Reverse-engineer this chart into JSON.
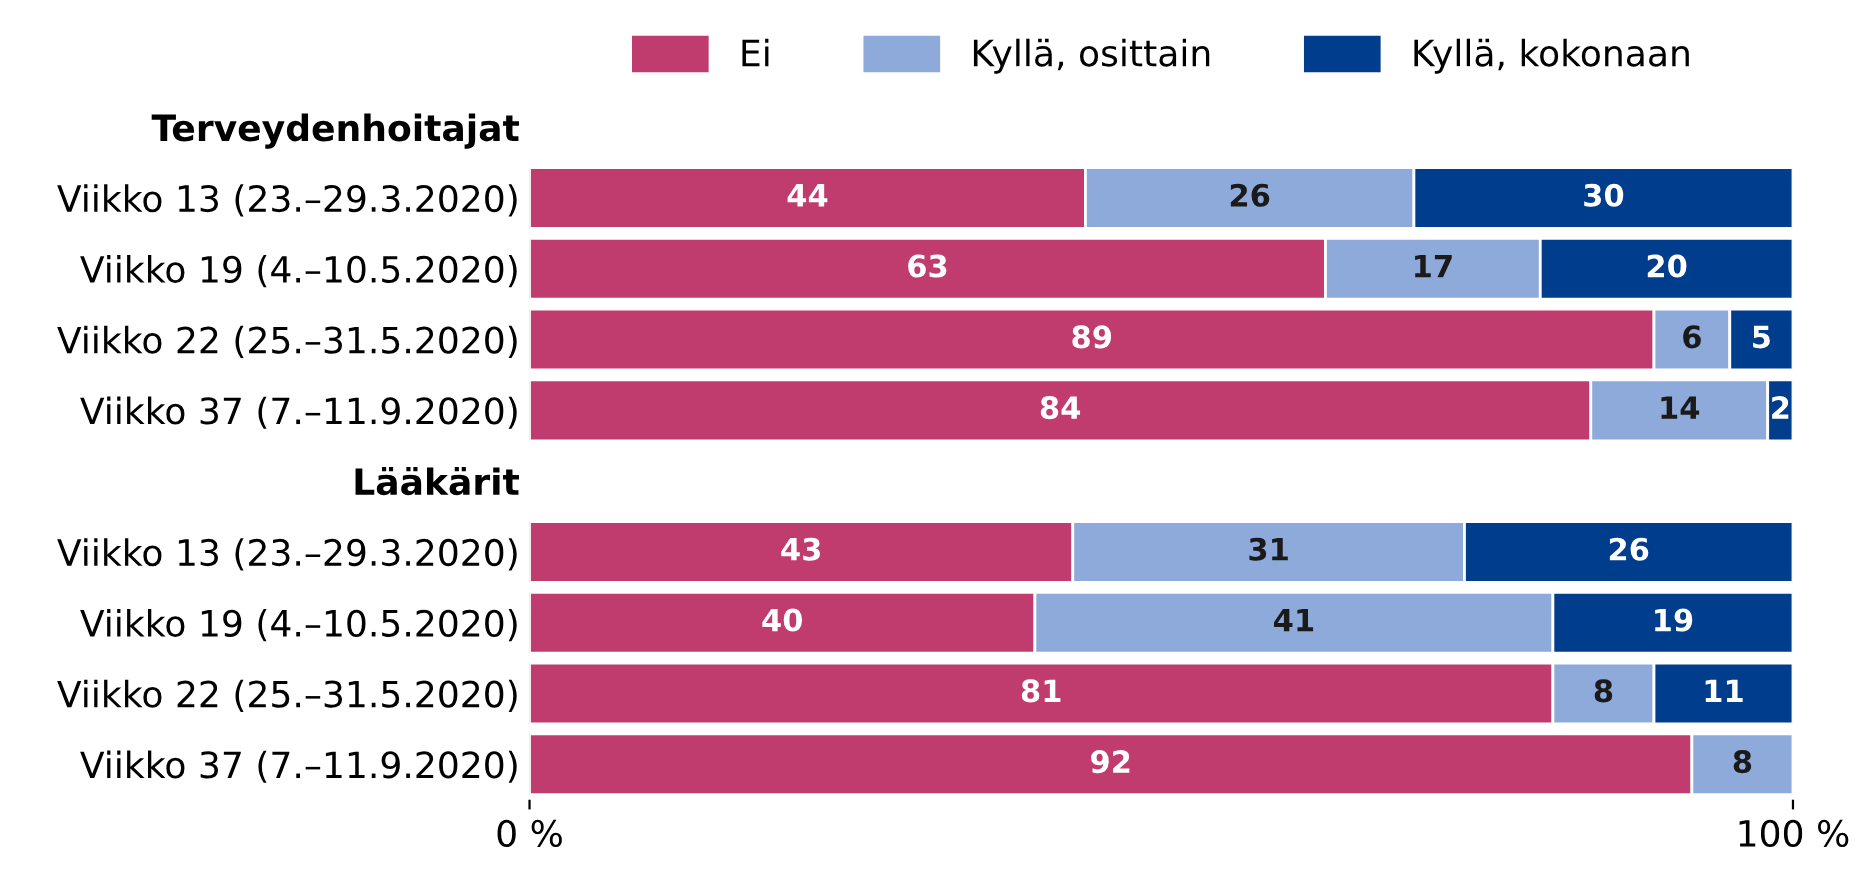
{
  "chart_data": {
    "type": "bar",
    "orientation": "horizontal",
    "stacked": true,
    "data_labels": true,
    "legend": "top",
    "grid": false,
    "categories": [
      "Terveydenhoitajat",
      "Viikko 13 (23.–29.3.2020)",
      "Viikko 19 (4.–10.5.2020)",
      "Viikko 22 (25.–31.5.2020)",
      "Viikko 37 (7.–11.9.2020)",
      "Lääkärit",
      "Viikko 13 (23.–29.3.2020)",
      "Viikko 19 (4.–10.5.2020)",
      "Viikko 22 (25.–31.5.2020)",
      "Viikko 37 (7.–11.9.2020)"
    ],
    "series": [
      {
        "name": "Ei",
        "color": "#c03c6e",
        "values": [
          null,
          44,
          63,
          89,
          84,
          null,
          43,
          40,
          81,
          92
        ]
      },
      {
        "name": "Kyllä, osittain",
        "color": "#8eaadb",
        "values": [
          null,
          26,
          17,
          6,
          14,
          null,
          31,
          41,
          8,
          8
        ]
      },
      {
        "name": "Kyllä, kokonaan",
        "color": "#003d8c",
        "values": [
          null,
          30,
          20,
          5,
          2,
          null,
          26,
          19,
          11,
          null
        ]
      }
    ],
    "xlim": [
      0,
      100
    ],
    "xticks": [
      {
        "value": 0,
        "label": "0 %"
      },
      {
        "value": 100,
        "label": "100 %"
      }
    ]
  }
}
